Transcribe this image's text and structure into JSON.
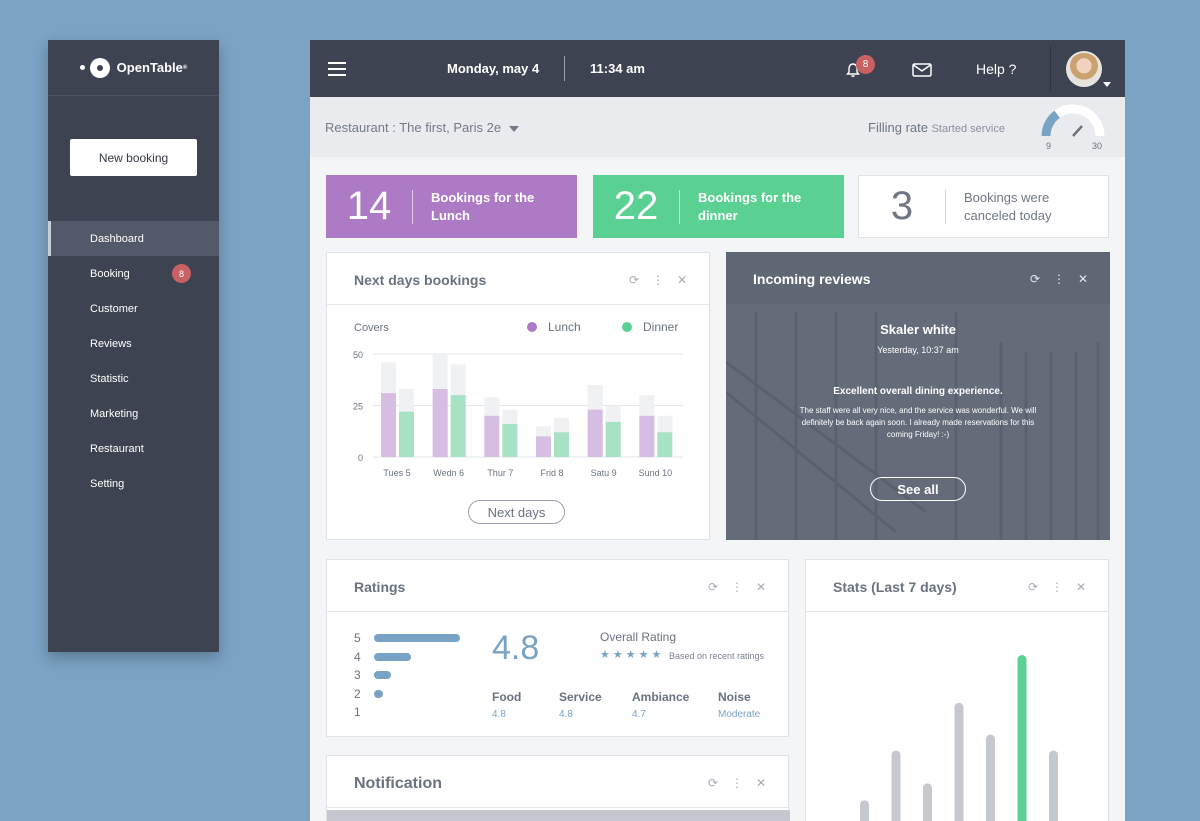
{
  "sidebar": {
    "logo": "OpenTable",
    "new_booking": "New booking",
    "items": [
      {
        "label": "Dashboard",
        "active": true
      },
      {
        "label": "Booking",
        "badge": "8"
      },
      {
        "label": "Customer"
      },
      {
        "label": "Reviews"
      },
      {
        "label": "Statistic"
      },
      {
        "label": "Marketing"
      },
      {
        "label": "Restaurant"
      },
      {
        "label": "Setting"
      }
    ]
  },
  "topbar": {
    "date": "Monday, may 4",
    "time": "11:34 am",
    "notifications": "8",
    "help": "Help ?"
  },
  "subbar": {
    "restaurant": "Restaurant : The first, Paris 2e",
    "filling_label": "Filling rate",
    "filling_status": "Started service",
    "gauge_min": "9",
    "gauge_max": "30",
    "gauge_level": 0.3
  },
  "stats_boxes": {
    "lunch": {
      "num": "14",
      "label": "Bookings for the Lunch"
    },
    "dinner": {
      "num": "22",
      "label": "Bookings for the dinner"
    },
    "canceled": {
      "num": "3",
      "label": "Bookings were canceled today"
    }
  },
  "next_days": {
    "title": "Next days bookings",
    "button": "Next days"
  },
  "chart_data": [
    {
      "type": "bar",
      "ylabel": "Covers",
      "ylim": [
        0,
        50
      ],
      "yticks": [
        "50",
        "25",
        "0"
      ],
      "categories": [
        "Tues 5",
        "Wedn 6",
        "Thur 7",
        "Frid 8",
        "Satu 9",
        "Sund 10"
      ],
      "series": [
        {
          "name": "Lunch",
          "color": "#ad7bc6",
          "values": [
            31,
            33,
            20,
            10,
            23,
            20
          ],
          "capacity": [
            46,
            50,
            29,
            15,
            35,
            30
          ]
        },
        {
          "name": "Dinner",
          "color": "#5ad092",
          "values": [
            22,
            30,
            16,
            12,
            17,
            12
          ],
          "capacity": [
            33,
            45,
            23,
            19,
            25,
            20
          ]
        }
      ]
    },
    {
      "type": "bar",
      "title": "Stats (Last 7 days)",
      "values": [
        28,
        75,
        44,
        120,
        90,
        165,
        75
      ],
      "highlight_index": 5,
      "colors": {
        "default": "#c5c8ce",
        "highlight": "#5ad092"
      }
    }
  ],
  "reviews": {
    "title": "Incoming reviews",
    "name": "Skaler white",
    "date": "Yesterday, 10:37 am",
    "headline": "Excellent overall dining experience.",
    "body": "The staff were all very nice, and the service was wonderful. We will definitely be back again soon. I already made reservations for this coming Friday! :-)",
    "button": "See all"
  },
  "ratings": {
    "title": "Ratings",
    "bars": [
      {
        "label": "5",
        "level": 1.0
      },
      {
        "label": "4",
        "level": 0.43
      },
      {
        "label": "3",
        "level": 0.2
      },
      {
        "label": "2",
        "level": 0.1
      },
      {
        "label": "1",
        "level": 0.0
      }
    ],
    "score": "4.8",
    "overall": "Overall Rating",
    "stars": "★★★★★",
    "stars_note": "Based on recent ratings",
    "subs": [
      {
        "label": "Food",
        "value": "4.8"
      },
      {
        "label": "Service",
        "value": "4.8"
      },
      {
        "label": "Ambiance",
        "value": "4.7"
      },
      {
        "label": "Noise",
        "value": "Moderate"
      }
    ]
  },
  "notification": {
    "title": "Notification"
  },
  "icons": {
    "refresh": "⟳",
    "more": "⋮",
    "close": "✕"
  }
}
